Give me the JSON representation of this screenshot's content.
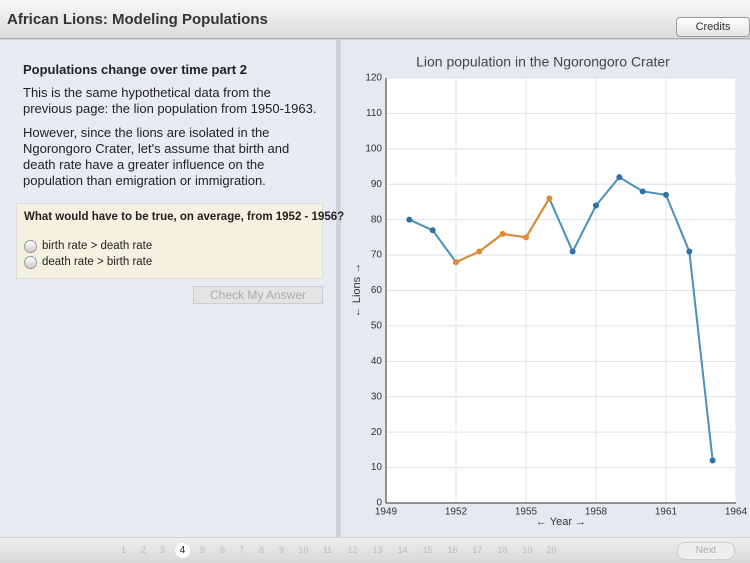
{
  "header": {
    "title": "African Lions: Modeling Populations",
    "credits": "Credits"
  },
  "lesson": {
    "heading": "Populations change over time part 2",
    "paragraphs": [
      "This is the same hypothetical data from the previous page: the lion population from 1950-1963.",
      "However, since the lions are isolated in the Ngorongoro Crater, let's assume that birth and death rate have a greater influence on the population than emigration or immigration."
    ],
    "question": "What would have to be true, on average, from 1952 - 1956?",
    "options": [
      "birth rate > death rate",
      "death rate > birth rate"
    ],
    "check_button": "Check My Answer"
  },
  "chart_data": {
    "type": "line",
    "title": "Lion population in the Ngorongoro Crater",
    "x_label": "← Year →",
    "y_label": "← Lions →",
    "x": [
      1950,
      1951,
      1952,
      1953,
      1954,
      1955,
      1956,
      1957,
      1958,
      1959,
      1960,
      1961,
      1962,
      1963
    ],
    "series": [
      {
        "color": "#4a90b8",
        "values": [
          80,
          77,
          68,
          71,
          76,
          75,
          86,
          71,
          84,
          92,
          88,
          87,
          71,
          12
        ],
        "point_colors": [
          "#2d72a8",
          "#2d72a8",
          "#e08a30",
          "#e08a30",
          "#e08a30",
          "#e08a30",
          "#e08a30",
          "#2d72a8",
          "#2d72a8",
          "#2d72a8",
          "#2d72a8",
          "#2d72a8",
          "#2d72a8",
          "#2d72a8"
        ]
      }
    ],
    "xlim": [
      1949,
      1964
    ],
    "xticks": [
      1949,
      1952,
      1955,
      1958,
      1961,
      1964
    ],
    "ylim": [
      0,
      120
    ],
    "yticks": [
      0,
      10,
      20,
      30,
      40,
      50,
      60,
      70,
      80,
      90,
      100,
      110,
      120
    ],
    "grid": true
  },
  "footer": {
    "pages": [
      "1",
      "2",
      "3",
      "4",
      "5",
      "6",
      "7",
      "8",
      "9",
      "10",
      "11",
      "12",
      "13",
      "14",
      "15",
      "16",
      "17",
      "18",
      "19",
      "20"
    ],
    "current_page": "4",
    "next": "Next"
  }
}
